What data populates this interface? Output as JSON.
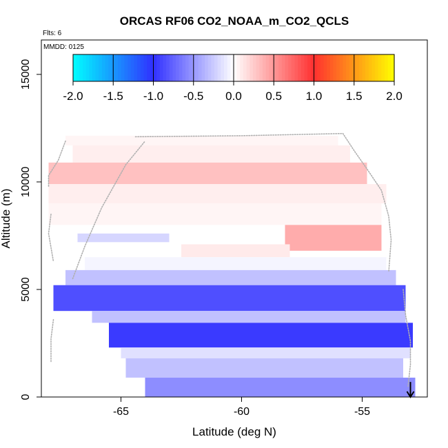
{
  "chart_data": {
    "type": "heatmap",
    "title": "ORCAS RF06 CO2_NOAA_m_CO2_QCLS",
    "flights_note": "Flts: 6",
    "date_note": "MMDD: 0125",
    "xlabel": "Latitude (deg N)",
    "ylabel": "Altitude (m)",
    "xlim": [
      -68.3,
      -52.3
    ],
    "ylim": [
      0,
      16600
    ],
    "xticks": [
      -65,
      -60,
      -55
    ],
    "xtick_labels": [
      "-65",
      "-60",
      "-55"
    ],
    "yticks": [
      0,
      5000,
      10000,
      15000
    ],
    "ytick_labels": [
      "0",
      "5000",
      "10000",
      "15000"
    ],
    "colorbar": {
      "min": -2.0,
      "max": 2.0,
      "ticks": [
        -2.0,
        -1.5,
        -1.0,
        -0.5,
        0.0,
        0.5,
        1.0,
        1.5,
        2.0
      ],
      "tick_labels": [
        "-2.0",
        "-1.5",
        "-1.0",
        "-0.5",
        "0.0",
        "0.5",
        "1.0",
        "1.5",
        "2.0"
      ],
      "colors": [
        "#00ffff",
        "#3030ff",
        "#ffffff",
        "#ff3030",
        "#ffff00"
      ]
    },
    "bands": [
      {
        "lat0": -67.3,
        "lat1": -56.0,
        "alt0": 11700,
        "alt1": 12150,
        "value": 0.05
      },
      {
        "lat0": -67.0,
        "lat1": -55.5,
        "alt0": 10900,
        "alt1": 11700,
        "value": 0.08
      },
      {
        "lat0": -68.0,
        "lat1": -54.8,
        "alt0": 9900,
        "alt1": 10900,
        "value": 0.3
      },
      {
        "lat0": -68.0,
        "lat1": -54.0,
        "alt0": 9000,
        "alt1": 9900,
        "value": 0.08
      },
      {
        "lat0": -68.0,
        "lat1": -54.2,
        "alt0": 8000,
        "alt1": 9000,
        "value": 0.05
      },
      {
        "lat0": -58.2,
        "lat1": -54.2,
        "alt0": 6800,
        "alt1": 8000,
        "value": 0.4
      },
      {
        "lat0": -66.8,
        "lat1": -63.0,
        "alt0": 7200,
        "alt1": 7600,
        "value": -0.2
      },
      {
        "lat0": -62.5,
        "lat1": -58.0,
        "alt0": 6500,
        "alt1": 7100,
        "value": 0.1
      },
      {
        "lat0": -66.5,
        "lat1": -54.0,
        "alt0": 5900,
        "alt1": 6500,
        "value": -0.05
      },
      {
        "lat0": -67.3,
        "lat1": -53.6,
        "alt0": 5200,
        "alt1": 5900,
        "value": -0.3
      },
      {
        "lat0": -67.8,
        "lat1": -53.2,
        "alt0": 4000,
        "alt1": 5200,
        "value": -0.85
      },
      {
        "lat0": -66.2,
        "lat1": -53.2,
        "alt0": 3450,
        "alt1": 4000,
        "value": -0.3
      },
      {
        "lat0": -65.5,
        "lat1": -52.9,
        "alt0": 2300,
        "alt1": 3450,
        "value": -0.95
      },
      {
        "lat0": -65.0,
        "lat1": -53.0,
        "alt0": 1800,
        "alt1": 2300,
        "value": -0.15
      },
      {
        "lat0": -64.8,
        "lat1": -53.3,
        "alt0": 900,
        "alt1": 1800,
        "value": -0.3
      },
      {
        "lat0": -64.0,
        "lat1": -52.8,
        "alt0": 0,
        "alt1": 900,
        "value": -0.55
      }
    ],
    "flight_tracks": [
      {
        "points": [
          [
            -67.3,
            11900
          ],
          [
            -67.6,
            11000
          ],
          [
            -68.0,
            10300
          ],
          [
            -68.0,
            9800
          ]
        ]
      },
      {
        "points": [
          [
            -67.9,
            8500
          ],
          [
            -68.0,
            7600
          ],
          [
            -67.8,
            6300
          ]
        ]
      },
      {
        "points": [
          [
            -67.8,
            3600
          ],
          [
            -67.9,
            2700
          ],
          [
            -67.9,
            1600
          ]
        ]
      },
      {
        "points": [
          [
            -67.0,
            5500
          ],
          [
            -66.5,
            7000
          ],
          [
            -65.8,
            8800
          ],
          [
            -64.8,
            10800
          ],
          [
            -64.0,
            11900
          ]
        ]
      },
      {
        "points": [
          [
            -64.4,
            12100
          ],
          [
            -60.0,
            12150
          ],
          [
            -55.8,
            12250
          ],
          [
            -55.3,
            11400
          ],
          [
            -54.8,
            10600
          ],
          [
            -54.2,
            9600
          ],
          [
            -53.9,
            8400
          ],
          [
            -53.8,
            7300
          ],
          [
            -53.9,
            5800
          ]
        ]
      },
      {
        "points": [
          [
            -53.3,
            5000
          ],
          [
            -53.2,
            3800
          ],
          [
            -53.0,
            2600
          ],
          [
            -53.0,
            1500
          ],
          [
            -53.1,
            500
          ]
        ]
      }
    ],
    "arrow": {
      "lat": -53.0,
      "alt_from": 700,
      "alt_to": 0
    }
  }
}
